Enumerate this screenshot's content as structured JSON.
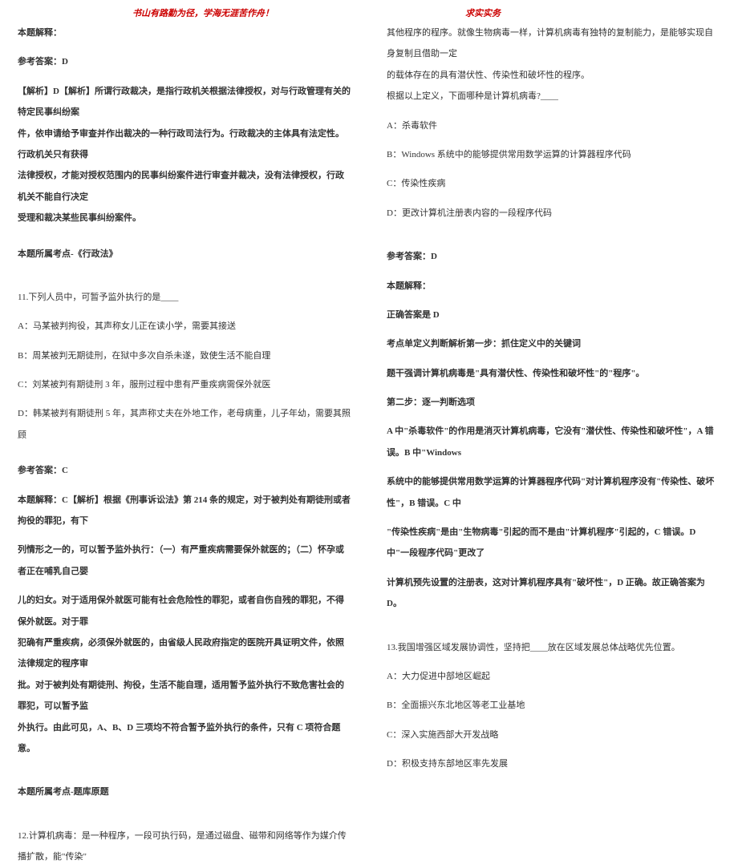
{
  "header": {
    "motto": "书山有路勤为径，学海无涯苦作舟！",
    "brand": "求实实务"
  },
  "left": {
    "l0": "本题解释：",
    "l1": "参考答案：D",
    "l2": "【解析】D【解析】所谓行政裁决，是指行政机关根据法律授权，对与行政管理有关的特定民事纠纷案",
    "l3": "件，依申请给予审查并作出裁决的一种行政司法行为。行政裁决的主体具有法定性。行政机关只有获得",
    "l4": "法律授权，才能对授权范围内的民事纠纷案件进行审查并裁决，没有法律授权，行政机关不能自行决定",
    "l5": "受理和裁决某些民事纠纷案件。",
    "l6": "本题所属考点-《行政法》",
    "l7": "11.下列人员中，可暂予监外执行的是____",
    "l8": "A：马某被判拘役，其声称女儿正在读小学，需要其接送",
    "l9": "B：周某被判无期徒刑，在狱中多次自杀未遂，致使生活不能自理",
    "l10": "C：刘某被判有期徒刑 3 年，服刑过程中患有严重疾病需保外就医",
    "l11": "D：韩某被判有期徒刑 5 年，其声称丈夫在外地工作，老母病重，儿子年幼，需要其照顾",
    "l12": "参考答案：C",
    "l13": "本题解释：C【解析】根据《刑事诉讼法》第 214 条的规定，对于被判处有期徒刑或者拘役的罪犯，有下",
    "l14": "列情形之一的，可以暂予监外执行：（一）有严重疾病需要保外就医的；（二）怀孕或者正在哺乳自己婴",
    "l15": "儿的妇女。对于适用保外就医可能有社会危险性的罪犯，或者自伤自残的罪犯，不得保外就医。对于罪",
    "l16": "犯确有严重疾病，必须保外就医的，由省级人民政府指定的医院开具证明文件，依照法律规定的程序审",
    "l17": "批。对于被判处有期徒刑、拘役，生活不能自理，适用暂予监外执行不致危害社会的罪犯，可以暂予监",
    "l18": "外执行。由此可见，A、B、D 三项均不符合暂予监外执行的条件，只有 C 项符合题意。",
    "l19": "本题所属考点-题库原题",
    "l20": "12.计算机病毒：是一种程序，一段可执行码，是通过磁盘、磁带和网络等作为媒介传播扩散，能\"传染\""
  },
  "right": {
    "r0": "其他程序的程序。就像生物病毒一样，计算机病毒有独特的复制能力，是能够实现自身复制且借助一定",
    "r1": "的载体存在的具有潜伏性、传染性和破坏性的程序。",
    "r2": "根据以上定义，下面哪种是计算机病毒?____",
    "r3": "A：杀毒软件",
    "r4": "B：Windows 系统中的能够提供常用数学运算的计算器程序代码",
    "r5": "C：传染性疾病",
    "r6": "D：更改计算机注册表内容的一段程序代码",
    "r7": "参考答案：D",
    "r8": "本题解释：",
    "r9": "正确答案是 D",
    "r10": "考点单定义判断解析第一步：抓住定义中的关键词",
    "r11": "题干强调计算机病毒是\"具有潜伏性、传染性和破坏性\"的\"程序\"。",
    "r12": "第二步：逐一判断选项",
    "r13": "A 中\"杀毒软件\"的作用是消灭计算机病毒，它没有\"潜伏性、传染性和破坏性\"，A 错误。B 中\"Windows",
    "r14": "系统中的能够提供常用数学运算的计算器程序代码\"对计算机程序没有\"传染性、破坏性\"，B 错误。C 中",
    "r15": "\"传染性疾病\"是由\"生物病毒\"引起的而不是由\"计算机程序\"引起的，C 错误。D 中\"一段程序代码\"更改了",
    "r16": "计算机预先设置的注册表，这对计算机程序具有\"破坏性\"，D 正确。故正确答案为 D。",
    "r17": "13.我国增强区域发展协调性，坚持把____放在区域发展总体战略优先位置。",
    "r18": "A：大力促进中部地区崛起",
    "r19": "B：全面振兴东北地区等老工业基地",
    "r20": "C：深入实施西部大开发战略",
    "r21": "D：积极支持东部地区率先发展"
  }
}
